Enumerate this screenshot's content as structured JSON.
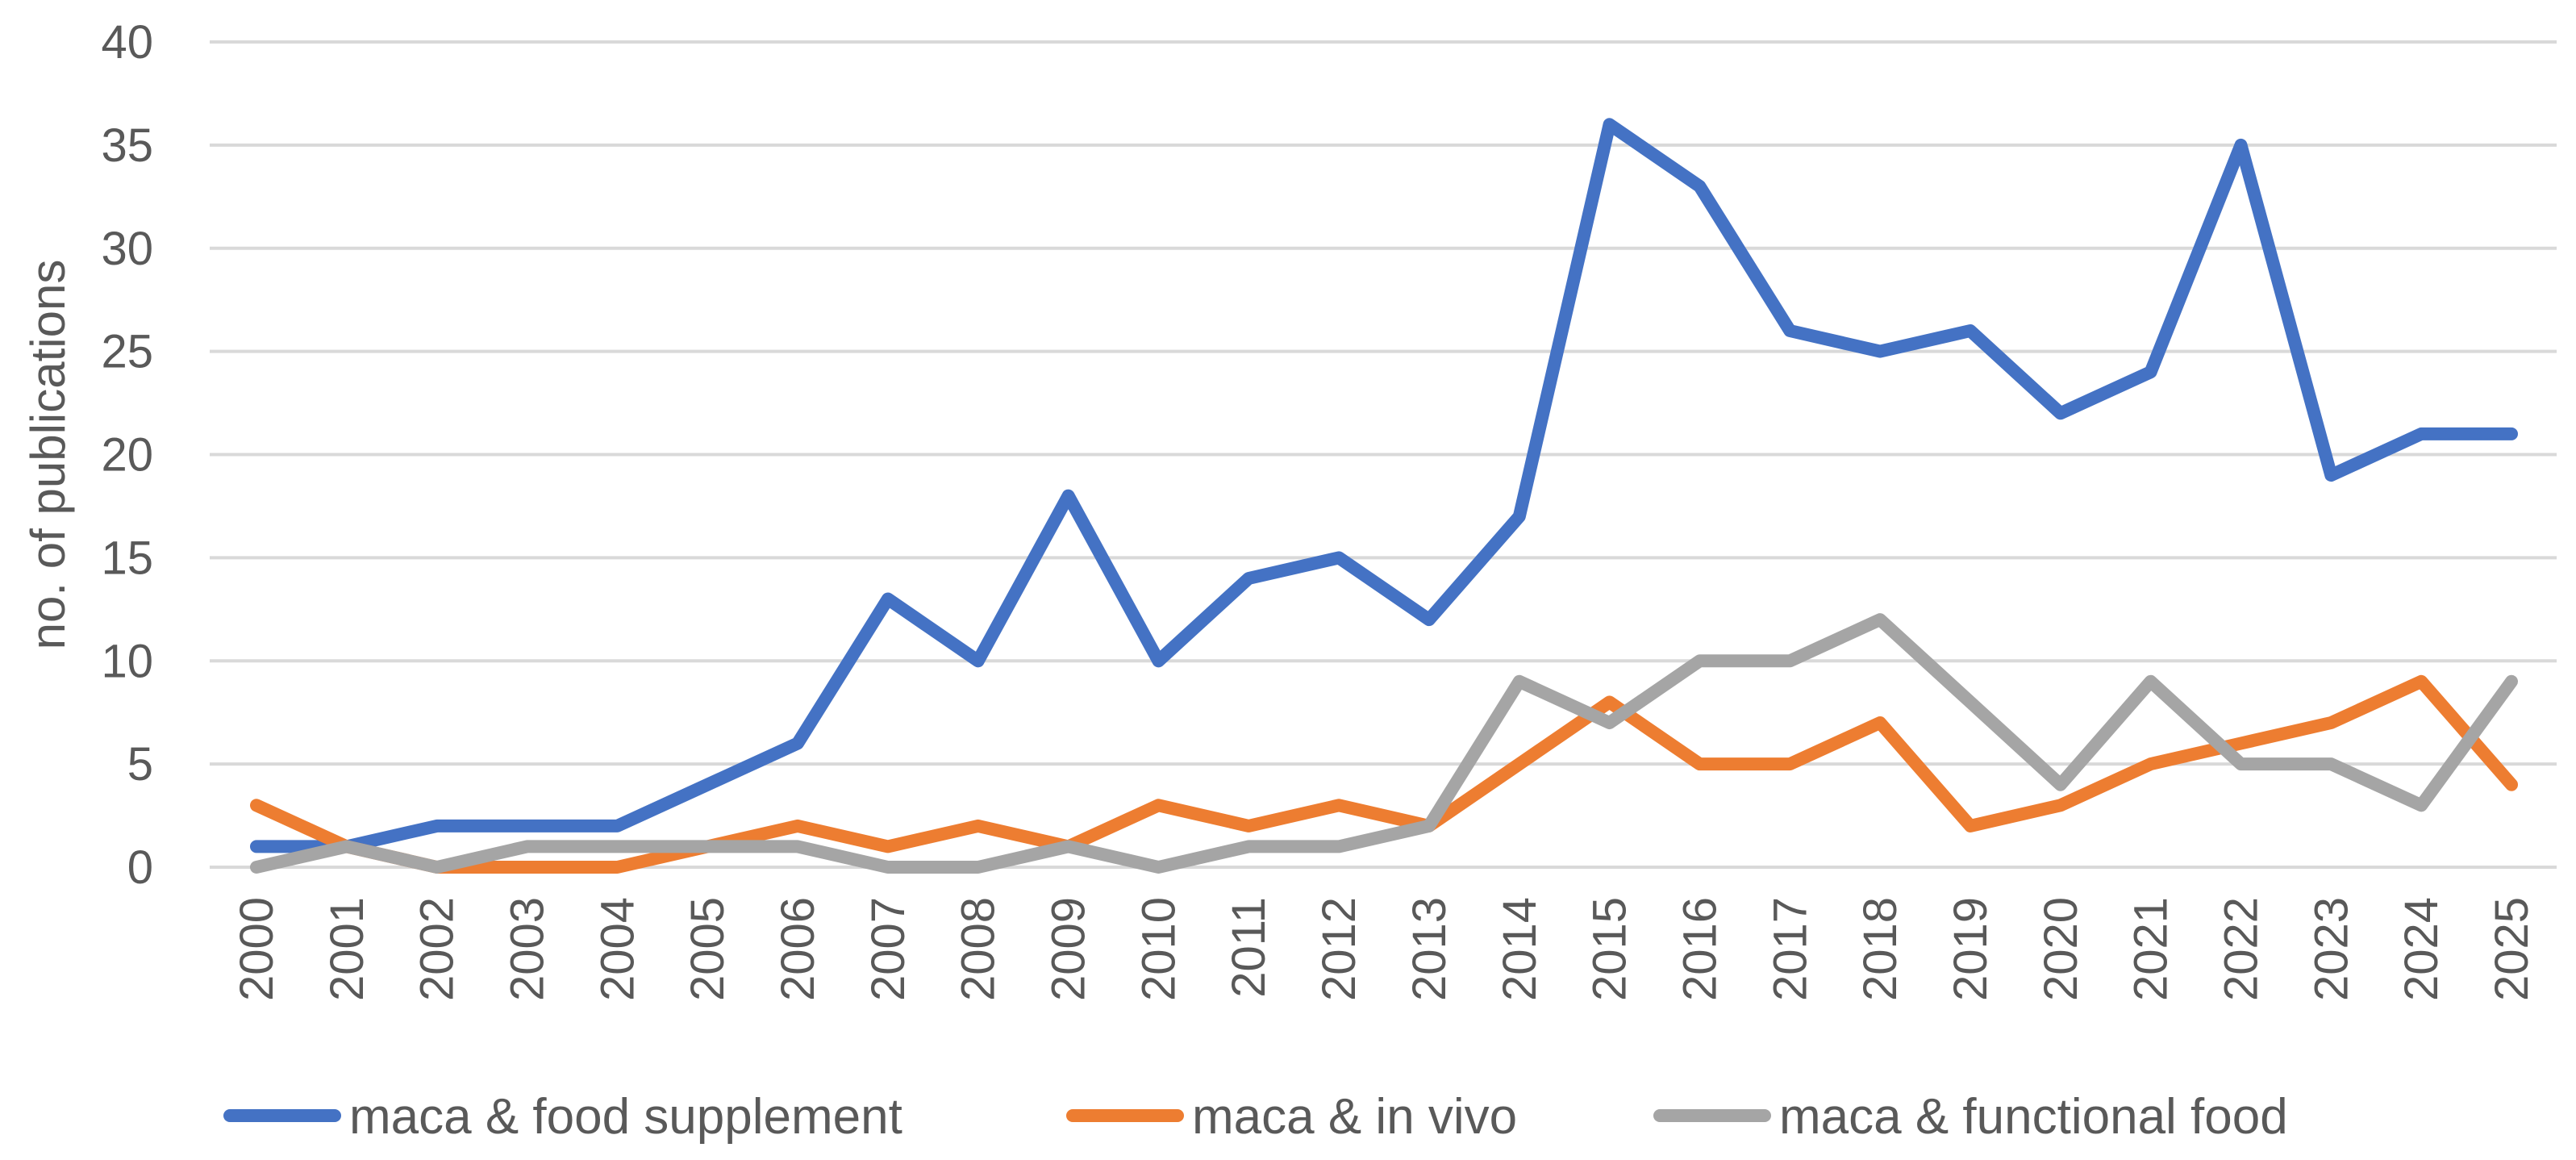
{
  "chart_data": {
    "type": "line",
    "title": "",
    "xlabel": "",
    "ylabel": "no. of publications",
    "ylim": [
      0,
      40
    ],
    "yticks": [
      0,
      5,
      10,
      15,
      20,
      25,
      30,
      35,
      40
    ],
    "grid": true,
    "legend_position": "bottom",
    "categories": [
      "2000",
      "2001",
      "2002",
      "2003",
      "2004",
      "2005",
      "2006",
      "2007",
      "2008",
      "2009",
      "2010",
      "2011",
      "2012",
      "2013",
      "2014",
      "2015",
      "2016",
      "2017",
      "2018",
      "2019",
      "2020",
      "2021",
      "2022",
      "2023",
      "2024",
      "2025"
    ],
    "series": [
      {
        "name": "maca & food supplement",
        "color": "#4472c4",
        "values": [
          1,
          1,
          2,
          2,
          2,
          4,
          6,
          13,
          10,
          18,
          10,
          14,
          15,
          12,
          17,
          36,
          33,
          26,
          25,
          26,
          22,
          24,
          35,
          19,
          21,
          21
        ]
      },
      {
        "name": "maca & in vivo",
        "color": "#ed7d31",
        "values": [
          3,
          1,
          0,
          0,
          0,
          1,
          2,
          1,
          2,
          1,
          3,
          2,
          3,
          2,
          5,
          8,
          5,
          5,
          7,
          2,
          3,
          5,
          6,
          7,
          9,
          4
        ]
      },
      {
        "name": "maca & functional food",
        "color": "#a5a5a5",
        "values": [
          0,
          1,
          0,
          1,
          1,
          1,
          1,
          0,
          0,
          1,
          0,
          1,
          1,
          2,
          9,
          7,
          10,
          10,
          12,
          8,
          4,
          9,
          5,
          5,
          3,
          9
        ]
      }
    ]
  }
}
